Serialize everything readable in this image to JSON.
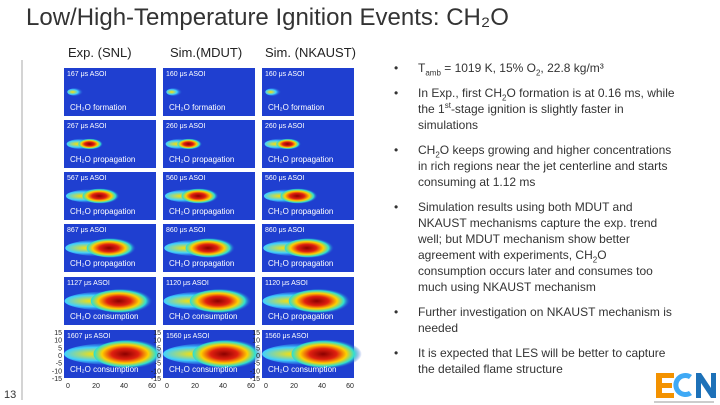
{
  "header": {
    "title": "Low/High-Temperature Ignition Events: CH₂O",
    "page_number": "13"
  },
  "columns": [
    {
      "heading": "Exp. (SNL)",
      "panels": [
        {
          "time": "167 μs ASOI",
          "label": "CH₂O formation"
        },
        {
          "time": "267 μs ASOI",
          "label": "CH₂O propagation"
        },
        {
          "time": "567 μs ASOI",
          "label": "CH₂O propagation"
        },
        {
          "time": "867 μs ASOI",
          "label": "CH₂O propagation"
        },
        {
          "time": "1127 μs ASOI",
          "label": "CH₂O consumption"
        },
        {
          "time": "1607 μs ASOI",
          "label": "CH₂O consumption"
        }
      ]
    },
    {
      "heading": "Sim.(MDUT)",
      "panels": [
        {
          "time": "160 μs ASOI",
          "label": "CH₂O formation"
        },
        {
          "time": "260 μs ASOI",
          "label": "CH₂O propagation"
        },
        {
          "time": "560 μs ASOI",
          "label": "CH₂O propagation"
        },
        {
          "time": "860 μs ASOI",
          "label": "CH₂O propagation"
        },
        {
          "time": "1120 μs ASOI",
          "label": "CH₂O consumption"
        },
        {
          "time": "1560 μs ASOI",
          "label": "CH₂O consumption"
        }
      ]
    },
    {
      "heading": "Sim. (NKAUST)",
      "panels": [
        {
          "time": "160 μs ASOI",
          "label": "CH₂O formation"
        },
        {
          "time": "260 μs ASOI",
          "label": "CH₂O propagation"
        },
        {
          "time": "560 μs ASOI",
          "label": "CH₂O propagation"
        },
        {
          "time": "860 μs ASOI",
          "label": "CH₂O propagation"
        },
        {
          "time": "1120 μs ASOI",
          "label": "CH₂O propagation"
        },
        {
          "time": "1560 μs ASOI",
          "label": "CH₂O consumption"
        }
      ]
    }
  ],
  "axes": {
    "y_ticks": [
      "15",
      "10",
      "5",
      "0",
      "-5",
      "-10",
      "-15"
    ],
    "x_ticks": [
      "0",
      "20",
      "40",
      "60"
    ]
  },
  "bullets": [
    [
      {
        "t": "T"
      },
      {
        "t": "amb",
        "s": "sub"
      },
      {
        "t": " = 1019 K, 15% O"
      },
      {
        "t": "2",
        "s": "sub"
      },
      {
        "t": ", 22.8 kg/m³"
      }
    ],
    [
      {
        "t": "In Exp., first CH"
      },
      {
        "t": "2",
        "s": "sub"
      },
      {
        "t": "O formation is at 0.16 ms, while the 1"
      },
      {
        "t": "st",
        "s": "sup"
      },
      {
        "t": "-stage ignition is slightly faster in simulations"
      }
    ],
    [
      {
        "t": "CH"
      },
      {
        "t": "2",
        "s": "sub"
      },
      {
        "t": "O keeps growing and higher concentrations in rich regions near the jet centerline and starts consuming at 1.12 ms"
      }
    ],
    [
      {
        "t": "Simulation results using both MDUT and NKAUST mechanisms capture the exp. trend well; but MDUT mechanism show better agreement with experiments, CH"
      },
      {
        "t": "2",
        "s": "sub"
      },
      {
        "t": "O consumption occurs later and consumes too much using NKAUST mechanism"
      }
    ],
    [
      {
        "t": "Further investigation on NKAUST mechanism is needed"
      }
    ],
    [
      {
        "t": "It is expected that LES will be better to capture the detailed flame structure"
      }
    ]
  ]
}
